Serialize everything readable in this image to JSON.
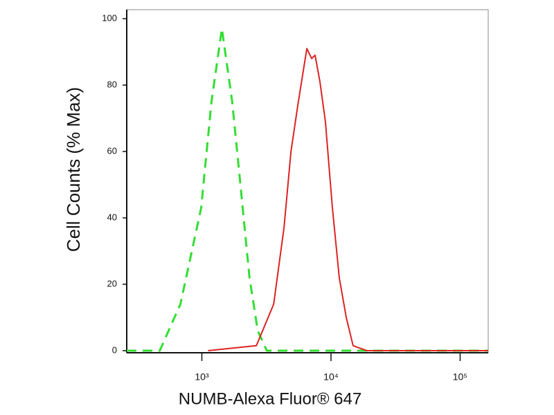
{
  "chart_data": {
    "type": "line",
    "xlabel": "NUMB-Alexa Fluor® 647",
    "ylabel": "Cell Counts (% Max)",
    "xscale": "log",
    "xlim": [
      262,
      165000
    ],
    "ylim": [
      0,
      100
    ],
    "xticks": [
      {
        "value": 1000,
        "label": "10³"
      },
      {
        "value": 10000,
        "label": "10⁴"
      },
      {
        "value": 100000,
        "label": "10⁵"
      }
    ],
    "yticks": [
      0,
      20,
      40,
      60,
      80,
      100
    ],
    "grid": false,
    "series": [
      {
        "color": "#33dd33",
        "dash": true,
        "x": [
          262,
          472,
          682,
          988,
          1188,
          1429,
          1718,
          1944,
          2338,
          2711,
          3184,
          165000
        ],
        "values": [
          0,
          0,
          14,
          43,
          75,
          97,
          75,
          54,
          22,
          6,
          0,
          0
        ]
      },
      {
        "color": "#dd2222",
        "dash": false,
        "x": [
          1117,
          2644,
          3597,
          4328,
          4898,
          5536,
          6501,
          7080,
          7534,
          8208,
          9058,
          10250,
          11590,
          13120,
          14830,
          18970,
          165000
        ],
        "values": [
          0,
          1.5,
          14,
          37,
          60,
          74,
          91,
          88,
          89,
          81,
          69,
          43,
          22,
          10,
          1.5,
          0,
          0
        ]
      }
    ]
  }
}
